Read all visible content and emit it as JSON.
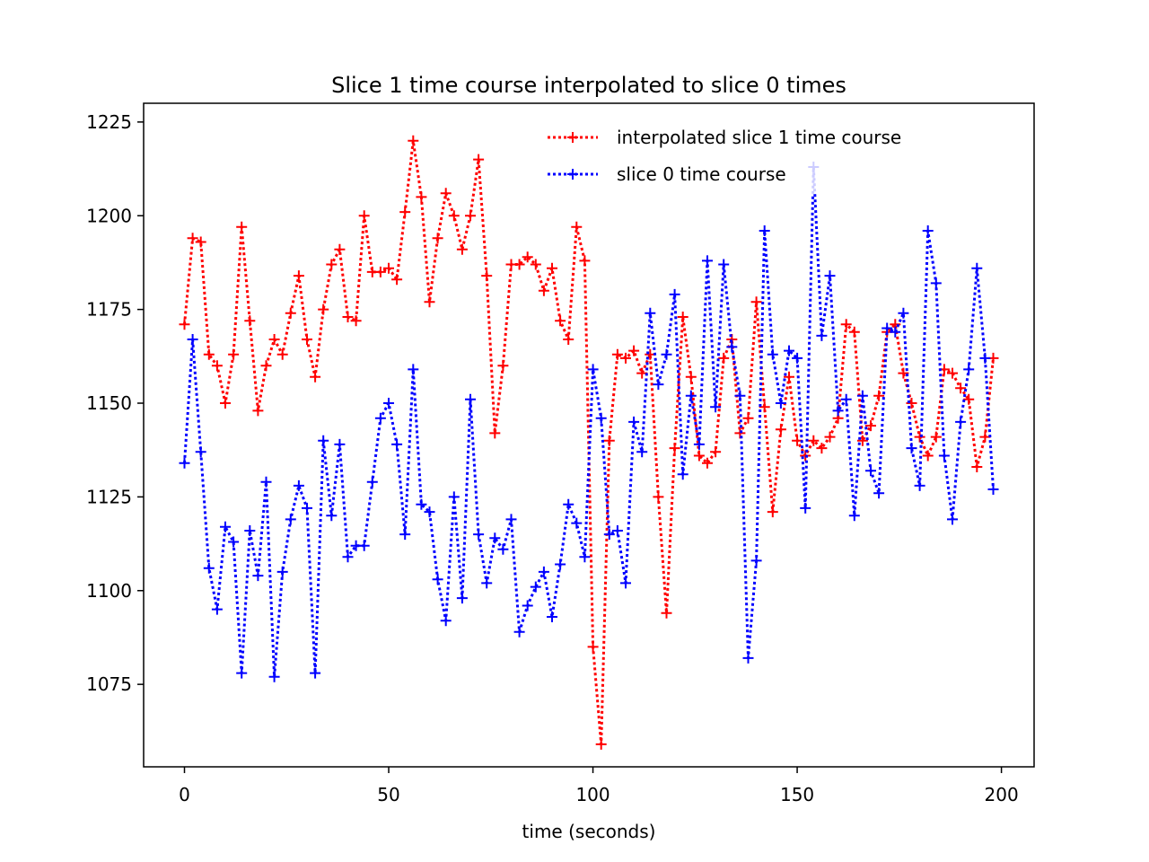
{
  "chart_data": {
    "type": "line",
    "title": "Slice 1 time course interpolated to slice 0 times",
    "xlabel": "time (seconds)",
    "ylabel": "",
    "xlim": [
      -10,
      208
    ],
    "ylim": [
      1053,
      1230
    ],
    "xticks": [
      0,
      50,
      100,
      150,
      200
    ],
    "yticks": [
      1075,
      1100,
      1125,
      1150,
      1175,
      1200,
      1225
    ],
    "grid": false,
    "legend_position": "top-right",
    "x": [
      0,
      2,
      4,
      6,
      8,
      10,
      12,
      14,
      16,
      18,
      20,
      22,
      24,
      26,
      28,
      30,
      32,
      34,
      36,
      38,
      40,
      42,
      44,
      46,
      48,
      50,
      52,
      54,
      56,
      58,
      60,
      62,
      64,
      66,
      68,
      70,
      72,
      74,
      76,
      78,
      80,
      82,
      84,
      86,
      88,
      90,
      92,
      94,
      96,
      98,
      100,
      102,
      104,
      106,
      108,
      110,
      112,
      114,
      116,
      118,
      120,
      122,
      124,
      126,
      128,
      130,
      132,
      134,
      136,
      138,
      140,
      142,
      144,
      146,
      148,
      150,
      152,
      154,
      156,
      158,
      160,
      162,
      164,
      166,
      168,
      170,
      172,
      174,
      176,
      178,
      180,
      182,
      184,
      186,
      188,
      190,
      192,
      194,
      196,
      198
    ],
    "series": [
      {
        "name": "interpolated slice 1 time course",
        "color": "#ff0000",
        "values": [
          1171,
          1194,
          1193,
          1163,
          1160,
          1150,
          1163,
          1197,
          1172,
          1148,
          1160,
          1167,
          1163,
          1174,
          1184,
          1167,
          1157,
          1175,
          1187,
          1191,
          1173,
          1172,
          1200,
          1185,
          1185,
          1186,
          1183,
          1201,
          1220,
          1205,
          1177,
          1194,
          1206,
          1200,
          1191,
          1200,
          1215,
          1184,
          1142,
          1160,
          1187,
          1187,
          1189,
          1187,
          1180,
          1186,
          1172,
          1167,
          1197,
          1188,
          1085,
          1059,
          1140,
          1163,
          1162,
          1164,
          1158,
          1163,
          1125,
          1094,
          1138,
          1173,
          1157,
          1136,
          1134,
          1137,
          1162,
          1167,
          1142,
          1146,
          1177,
          1149,
          1121,
          1143,
          1157,
          1140,
          1136,
          1140,
          1138,
          1141,
          1146,
          1171,
          1169,
          1140,
          1144,
          1152,
          1169,
          1171,
          1158,
          1150,
          1141,
          1136,
          1141,
          1159,
          1158,
          1154,
          1151,
          1133,
          1141,
          1162
        ]
      },
      {
        "name": "slice 0 time course",
        "color": "#0000ff",
        "values": [
          1134,
          1167,
          1137,
          1106,
          1095,
          1117,
          1113,
          1078,
          1116,
          1104,
          1129,
          1077,
          1105,
          1119,
          1128,
          1122,
          1078,
          1140,
          1120,
          1139,
          1109,
          1112,
          1112,
          1129,
          1146,
          1150,
          1139,
          1115,
          1159,
          1123,
          1121,
          1103,
          1092,
          1125,
          1098,
          1151,
          1115,
          1102,
          1114,
          1111,
          1119,
          1089,
          1096,
          1101,
          1105,
          1093,
          1107,
          1123,
          1118,
          1109,
          1159,
          1146,
          1115,
          1116,
          1102,
          1145,
          1137,
          1174,
          1155,
          1163,
          1179,
          1131,
          1152,
          1139,
          1188,
          1149,
          1187,
          1165,
          1152,
          1082,
          1108,
          1196,
          1163,
          1150,
          1164,
          1162,
          1122,
          1213,
          1168,
          1184,
          1148,
          1151,
          1120,
          1152,
          1132,
          1126,
          1170,
          1169,
          1174,
          1138,
          1128,
          1196,
          1182,
          1136,
          1119,
          1145,
          1159,
          1186,
          1162,
          1127
        ]
      }
    ]
  }
}
